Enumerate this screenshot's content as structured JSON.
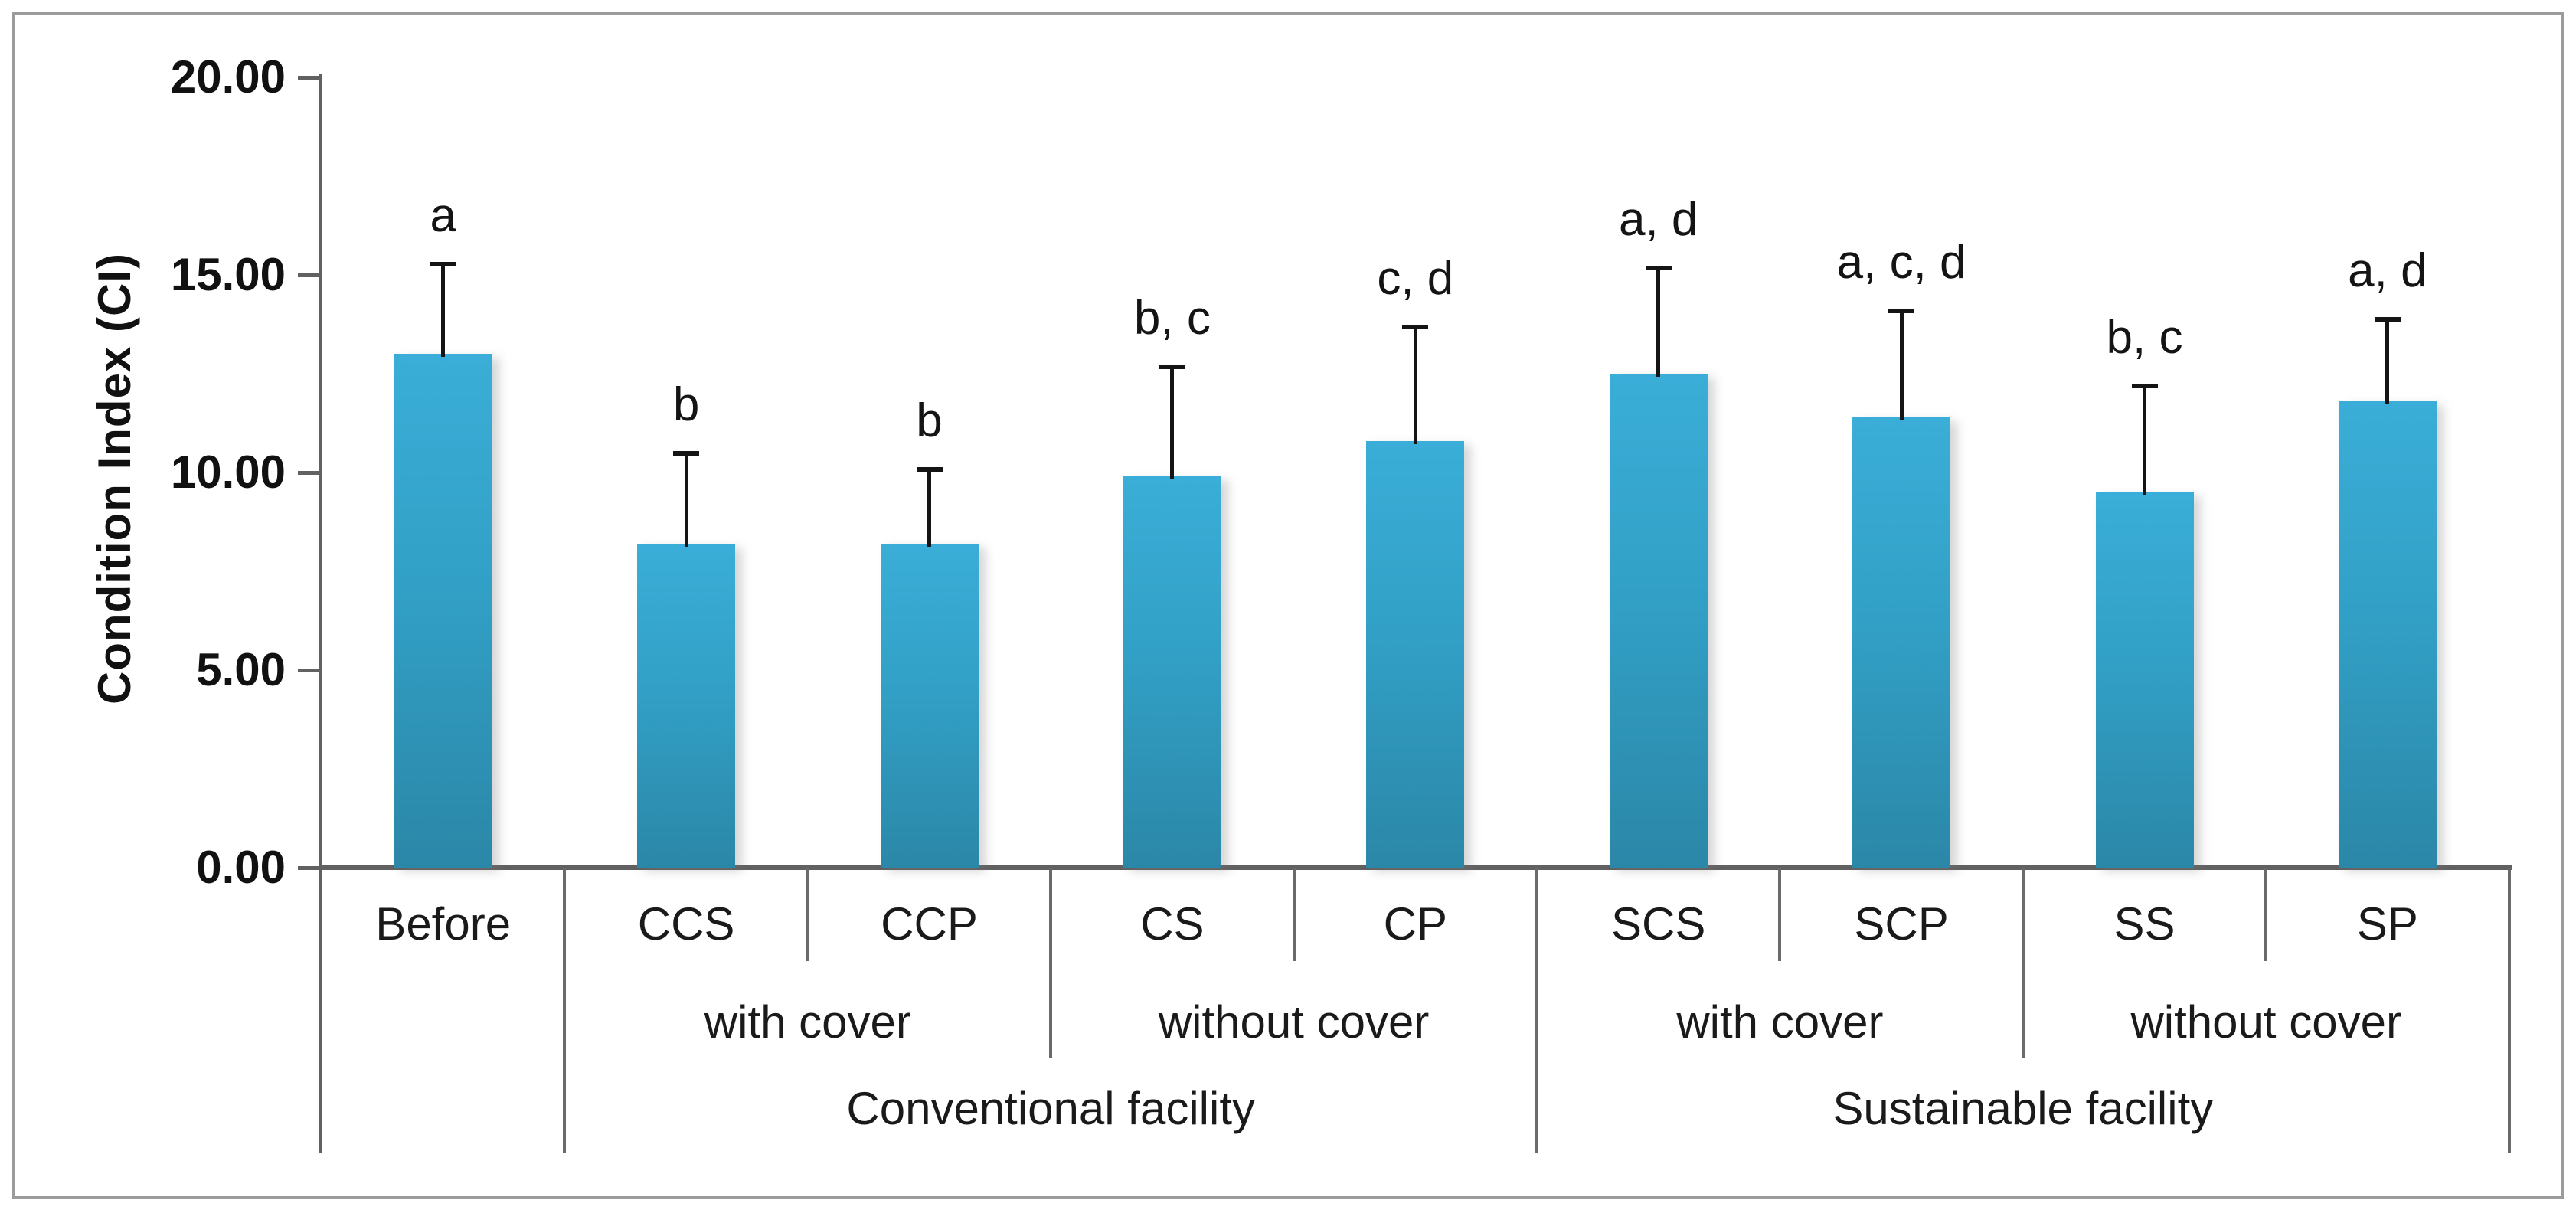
{
  "chart_data": {
    "type": "bar",
    "title": "",
    "ylabel": "Condition Index (CI)",
    "xlabel": "",
    "ylim": [
      0,
      20
    ],
    "ytick_values": [
      0,
      5,
      10,
      15,
      20
    ],
    "ytick_labels": [
      "0.00",
      "5.00",
      "10.00",
      "15.00",
      "20.00"
    ],
    "grid": false,
    "legend": "none",
    "bar_color_top": "#3aaed8",
    "bar_color_bottom": "#2b87a8",
    "axis_color": "#616161",
    "error_bar_color": "#141414",
    "categories": [
      "Before",
      "CCS",
      "CCP",
      "CS",
      "CP",
      "SCS",
      "SCP",
      "SS",
      "SP"
    ],
    "values": [
      13.0,
      8.2,
      8.2,
      9.9,
      10.8,
      12.5,
      11.4,
      9.5,
      11.8
    ],
    "error_plus": [
      2.3,
      2.3,
      1.9,
      2.8,
      2.9,
      2.7,
      2.7,
      2.7,
      2.1
    ],
    "error_bar_tops": [
      15.3,
      10.5,
      10.1,
      12.7,
      13.7,
      15.2,
      14.1,
      12.2,
      13.9
    ],
    "sig_labels": [
      "a",
      "b",
      "b",
      "b, c",
      "c, d",
      "a, d",
      "a, c, d",
      "b, c",
      "a, d"
    ],
    "axis_groups_level1": [
      {
        "label": "with cover",
        "start": 1,
        "end": 2
      },
      {
        "label": "without cover",
        "start": 3,
        "end": 4
      },
      {
        "label": "with cover",
        "start": 5,
        "end": 6
      },
      {
        "label": "without cover",
        "start": 7,
        "end": 8
      }
    ],
    "axis_groups_level2": [
      {
        "label": "Conventional facility",
        "start": 1,
        "end": 4
      },
      {
        "label": "Sustainable facility",
        "start": 5,
        "end": 8
      }
    ]
  }
}
